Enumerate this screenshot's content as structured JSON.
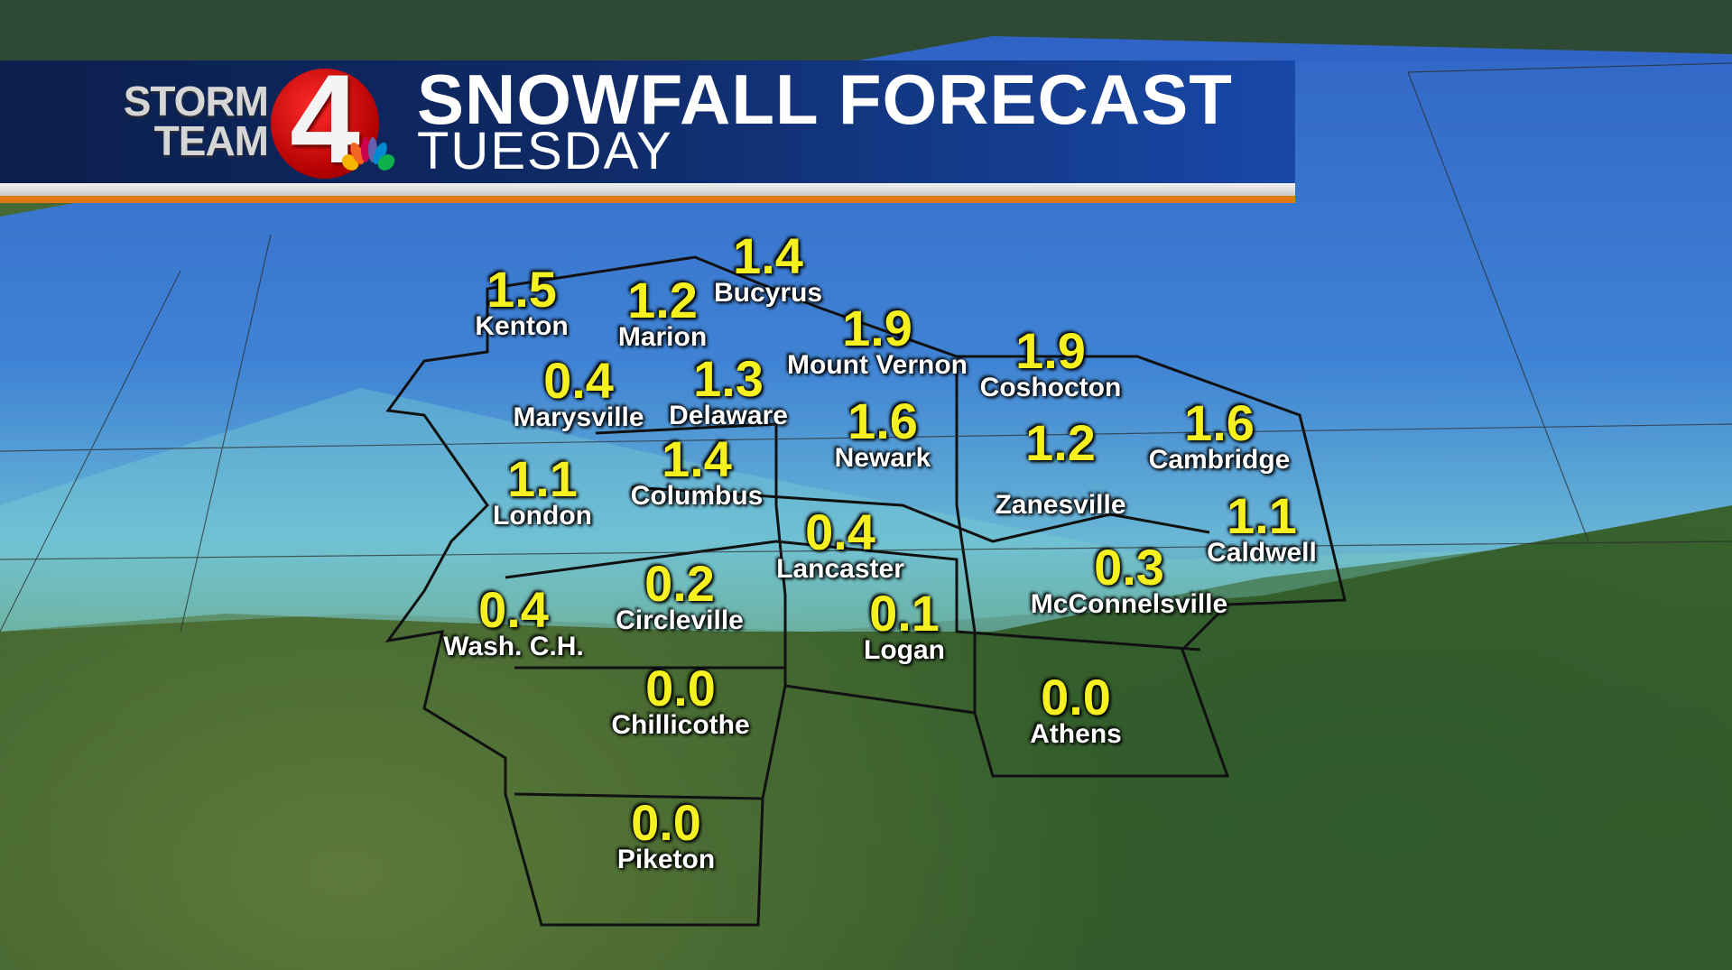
{
  "header": {
    "logo_text_line1": "STORM",
    "logo_text_line2": "TEAM",
    "logo_number": "4",
    "title": "SNOWFALL FORECAST",
    "subtitle": "TUESDAY"
  },
  "colors": {
    "banner": "#0f2a66",
    "accent_orange": "#e07a12",
    "value_yellow": "#f5f020",
    "snow_blue": "#3a7de0"
  },
  "units": "inches",
  "locations": [
    {
      "name": "Bucyrus",
      "value": "1.4"
    },
    {
      "name": "Kenton",
      "value": "1.5"
    },
    {
      "name": "Marion",
      "value": "1.2"
    },
    {
      "name": "Mount Vernon",
      "value": "1.9"
    },
    {
      "name": "Coshocton",
      "value": "1.9"
    },
    {
      "name": "Marysville",
      "value": "0.4"
    },
    {
      "name": "Delaware",
      "value": "1.3"
    },
    {
      "name": "Newark",
      "value": "1.6"
    },
    {
      "name": "Cambridge",
      "value": "1.6"
    },
    {
      "name": "Zanesville",
      "value": "1.2"
    },
    {
      "name": "Columbus",
      "value": "1.4"
    },
    {
      "name": "London",
      "value": "1.1"
    },
    {
      "name": "Caldwell",
      "value": "1.1"
    },
    {
      "name": "Lancaster",
      "value": "0.4"
    },
    {
      "name": "McConnelsville",
      "value": "0.3"
    },
    {
      "name": "Circleville",
      "value": "0.2"
    },
    {
      "name": "Wash. C.H.",
      "value": "0.4"
    },
    {
      "name": "Logan",
      "value": "0.1"
    },
    {
      "name": "Chillicothe",
      "value": "0.0"
    },
    {
      "name": "Athens",
      "value": "0.0"
    },
    {
      "name": "Piketon",
      "value": "0.0"
    }
  ]
}
